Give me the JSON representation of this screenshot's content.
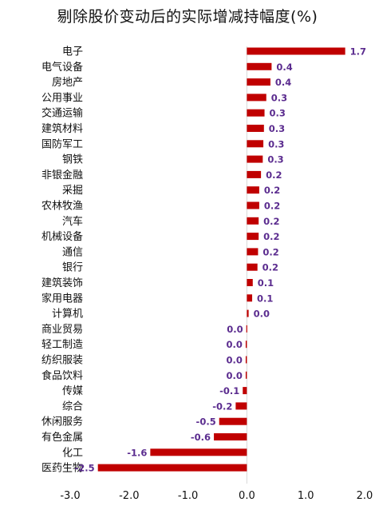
{
  "chart_data": {
    "type": "bar",
    "orientation": "horizontal",
    "title": "剔除股价变动后的实际增减持幅度(%)",
    "xlabel": "",
    "ylabel": "",
    "xlim": [
      -3.0,
      2.0
    ],
    "x_ticks": [
      "-3.0",
      "-2.0",
      "-1.0",
      "0.0",
      "1.0",
      "2.0"
    ],
    "grid": false,
    "legend": "none",
    "bar_color": "#c00000",
    "label_color": "#5b2c8f",
    "categories": [
      "电子",
      "电气设备",
      "房地产",
      "公用事业",
      "交通运输",
      "建筑材料",
      "国防军工",
      "钢铁",
      "非银金融",
      "采掘",
      "农林牧渔",
      "汽车",
      "机械设备",
      "通信",
      "银行",
      "建筑装饰",
      "家用电器",
      "计算机",
      "商业贸易",
      "轻工制造",
      "纺织服装",
      "食品饮料",
      "传媒",
      "综合",
      "休闲服务",
      "有色金属",
      "化工",
      "医药生物"
    ],
    "values": [
      1.67,
      0.42,
      0.4,
      0.33,
      0.3,
      0.29,
      0.28,
      0.27,
      0.24,
      0.21,
      0.21,
      0.2,
      0.2,
      0.19,
      0.18,
      0.1,
      0.09,
      0.03,
      -0.01,
      -0.02,
      -0.02,
      -0.02,
      -0.07,
      -0.19,
      -0.47,
      -0.56,
      -1.64,
      -2.53
    ],
    "value_labels": [
      "1.7",
      "0.4",
      "0.4",
      "0.3",
      "0.3",
      "0.3",
      "0.3",
      "0.3",
      "0.2",
      "0.2",
      "0.2",
      "0.2",
      "0.2",
      "0.2",
      "0.2",
      "0.1",
      "0.1",
      "0.0",
      "0.0",
      "0.0",
      "0.0",
      "0.0",
      "-0.1",
      "-0.2",
      "-0.5",
      "-0.6",
      "-1.6",
      "-2.5"
    ]
  }
}
